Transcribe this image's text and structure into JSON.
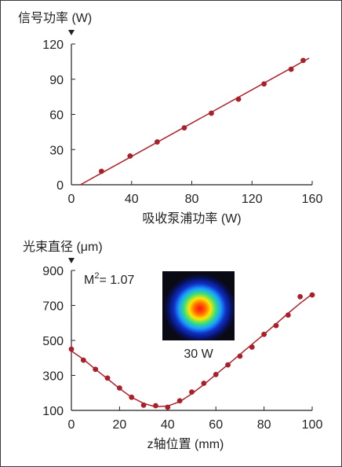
{
  "colors": {
    "line": "#b0202a",
    "point": "#a8202a",
    "axis": "#222222",
    "text": "#222222",
    "beam_bg": "#0a0a14"
  },
  "chart_data": [
    {
      "type": "line",
      "ylabel": "信号功率 (W)",
      "xlabel": "吸收泵浦功率 (W)",
      "xlim": [
        0,
        160
      ],
      "ylim": [
        0,
        120
      ],
      "xticks": [
        0,
        40,
        80,
        120,
        160
      ],
      "yticks": [
        0,
        30,
        60,
        90,
        120
      ],
      "series": [
        {
          "values": [
            {
              "x": 20,
              "y": 11.5
            },
            {
              "x": 39,
              "y": 24.5
            },
            {
              "x": 57,
              "y": 36.5
            },
            {
              "x": 75,
              "y": 48.5
            },
            {
              "x": 93,
              "y": 61
            },
            {
              "x": 111,
              "y": 73
            },
            {
              "x": 128,
              "y": 86
            },
            {
              "x": 146,
              "y": 98.5
            },
            {
              "x": 154,
              "y": 106
            }
          ]
        }
      ],
      "fit_line": [
        [
          6,
          0
        ],
        [
          158,
          108
        ]
      ]
    },
    {
      "type": "scatter",
      "ylabel": "光束直径 (μm)",
      "xlabel": "z轴位置 (mm)",
      "xlim": [
        0,
        100
      ],
      "ylim": [
        100,
        900
      ],
      "xticks": [
        0,
        20,
        40,
        60,
        80,
        100
      ],
      "yticks": [
        100,
        300,
        500,
        700,
        900
      ],
      "annotation": {
        "base": "M",
        "sup": "2",
        "text": "= 1.07"
      },
      "inset_label": "30 W",
      "series": [
        {
          "values": [
            {
              "x": 0,
              "y": 450
            },
            {
              "x": 5,
              "y": 387
            },
            {
              "x": 10,
              "y": 335
            },
            {
              "x": 15,
              "y": 285
            },
            {
              "x": 20,
              "y": 228
            },
            {
              "x": 25,
              "y": 175
            },
            {
              "x": 30,
              "y": 130
            },
            {
              "x": 35,
              "y": 127
            },
            {
              "x": 40,
              "y": 118
            },
            {
              "x": 45,
              "y": 155
            },
            {
              "x": 50,
              "y": 205
            },
            {
              "x": 55,
              "y": 255
            },
            {
              "x": 60,
              "y": 305
            },
            {
              "x": 65,
              "y": 360
            },
            {
              "x": 70,
              "y": 410
            },
            {
              "x": 75,
              "y": 462
            },
            {
              "x": 80,
              "y": 535
            },
            {
              "x": 85,
              "y": 585
            },
            {
              "x": 90,
              "y": 645
            },
            {
              "x": 95,
              "y": 750
            },
            {
              "x": 100,
              "y": 760
            }
          ]
        }
      ],
      "fit_curve": [
        [
          0,
          440
        ],
        [
          5,
          392
        ],
        [
          10,
          335
        ],
        [
          15,
          280
        ],
        [
          20,
          225
        ],
        [
          25,
          175
        ],
        [
          30,
          140
        ],
        [
          35,
          120
        ],
        [
          40,
          125
        ],
        [
          45,
          150
        ],
        [
          50,
          195
        ],
        [
          55,
          248
        ],
        [
          60,
          305
        ],
        [
          65,
          362
        ],
        [
          70,
          420
        ],
        [
          75,
          478
        ],
        [
          80,
          535
        ],
        [
          85,
          595
        ],
        [
          90,
          655
        ],
        [
          95,
          712
        ],
        [
          100,
          765
        ]
      ]
    }
  ]
}
